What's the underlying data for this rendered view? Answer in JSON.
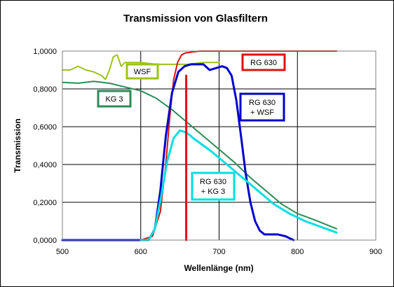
{
  "chart_data": {
    "type": "line",
    "title": "Transmission von Glasfiltern",
    "xlabel": "Wellenlänge (nm)",
    "ylabel": "Transmission",
    "xlim": [
      500,
      900
    ],
    "ylim": [
      0,
      1
    ],
    "xticks": [
      "500",
      "600",
      "700",
      "800",
      "900"
    ],
    "yticks": [
      "0,0000",
      "0,2000",
      "0,4000",
      "0,6000",
      "0,8000",
      "1,0000"
    ],
    "grid": true,
    "annotations": [
      {
        "lines": [
          "RG 630"
        ],
        "color": "#E01010",
        "series": "RG 630"
      },
      {
        "lines": [
          "WSF"
        ],
        "color": "#9CC31C",
        "series": "WSF"
      },
      {
        "lines": [
          "KG 3"
        ],
        "color": "#2E8B57",
        "series": "KG 3"
      },
      {
        "lines": [
          "RG 630",
          "+ WSF"
        ],
        "color": "#0000CC",
        "series": "RG 630 + WSF"
      },
      {
        "lines": [
          "RG 630",
          "+ KG 3"
        ],
        "color": "#00E0E0",
        "series": "RG 630 + KG 3"
      }
    ],
    "series": [
      {
        "name": "WSF",
        "color": "#9CC31C",
        "x": [
          500,
          510,
          520,
          530,
          540,
          550,
          555,
          560,
          565,
          570,
          575,
          580,
          590,
          600,
          620,
          640,
          660,
          680,
          700
        ],
        "y": [
          0.9,
          0.9,
          0.92,
          0.9,
          0.89,
          0.87,
          0.85,
          0.9,
          0.97,
          0.98,
          0.92,
          0.94,
          0.94,
          0.94,
          0.93,
          0.93,
          0.93,
          0.94,
          0.94
        ]
      },
      {
        "name": "KG 3",
        "color": "#2E8B57",
        "x": [
          500,
          520,
          540,
          560,
          580,
          600,
          620,
          640,
          660,
          680,
          700,
          720,
          740,
          760,
          780,
          800,
          820,
          850
        ],
        "y": [
          0.835,
          0.83,
          0.84,
          0.83,
          0.81,
          0.79,
          0.75,
          0.69,
          0.62,
          0.55,
          0.48,
          0.41,
          0.33,
          0.26,
          0.19,
          0.14,
          0.11,
          0.06
        ]
      },
      {
        "name": "RG 630",
        "color": "#E01010",
        "x": [
          600,
          615,
          625,
          632,
          637,
          642,
          647,
          652,
          657,
          665,
          675,
          700,
          750,
          800,
          850
        ],
        "y": [
          0.0,
          0.02,
          0.15,
          0.4,
          0.65,
          0.85,
          0.94,
          0.98,
          0.99,
          0.995,
          1.0,
          1.0,
          1.0,
          1.0,
          1.0
        ]
      },
      {
        "name": "RG 630 + WSF",
        "color": "#0000CC",
        "x": [
          500,
          600,
          610,
          618,
          625,
          632,
          640,
          648,
          656,
          664,
          672,
          680,
          688,
          696,
          704,
          710,
          716,
          722,
          728,
          734,
          740,
          746,
          752,
          758,
          765,
          775,
          785,
          790,
          795
        ],
        "y": [
          0.0,
          0.0,
          0.0,
          0.06,
          0.26,
          0.55,
          0.78,
          0.89,
          0.92,
          0.93,
          0.93,
          0.93,
          0.9,
          0.91,
          0.92,
          0.91,
          0.87,
          0.74,
          0.55,
          0.35,
          0.2,
          0.1,
          0.05,
          0.03,
          0.03,
          0.03,
          0.02,
          0.01,
          0.0
        ]
      },
      {
        "name": "RG 630 + KG 3",
        "color": "#00E0E0",
        "x": [
          600,
          610,
          618,
          626,
          634,
          642,
          650,
          658,
          670,
          690,
          710,
          730,
          750,
          770,
          790,
          810,
          830,
          850
        ],
        "y": [
          0.0,
          0.0,
          0.06,
          0.23,
          0.42,
          0.54,
          0.58,
          0.57,
          0.53,
          0.47,
          0.4,
          0.33,
          0.26,
          0.19,
          0.14,
          0.1,
          0.07,
          0.04
        ]
      },
      {
        "name": "marker 658 nm",
        "color": "#E01010",
        "x": [
          658,
          658
        ],
        "y": [
          0.0,
          0.87
        ]
      }
    ]
  }
}
